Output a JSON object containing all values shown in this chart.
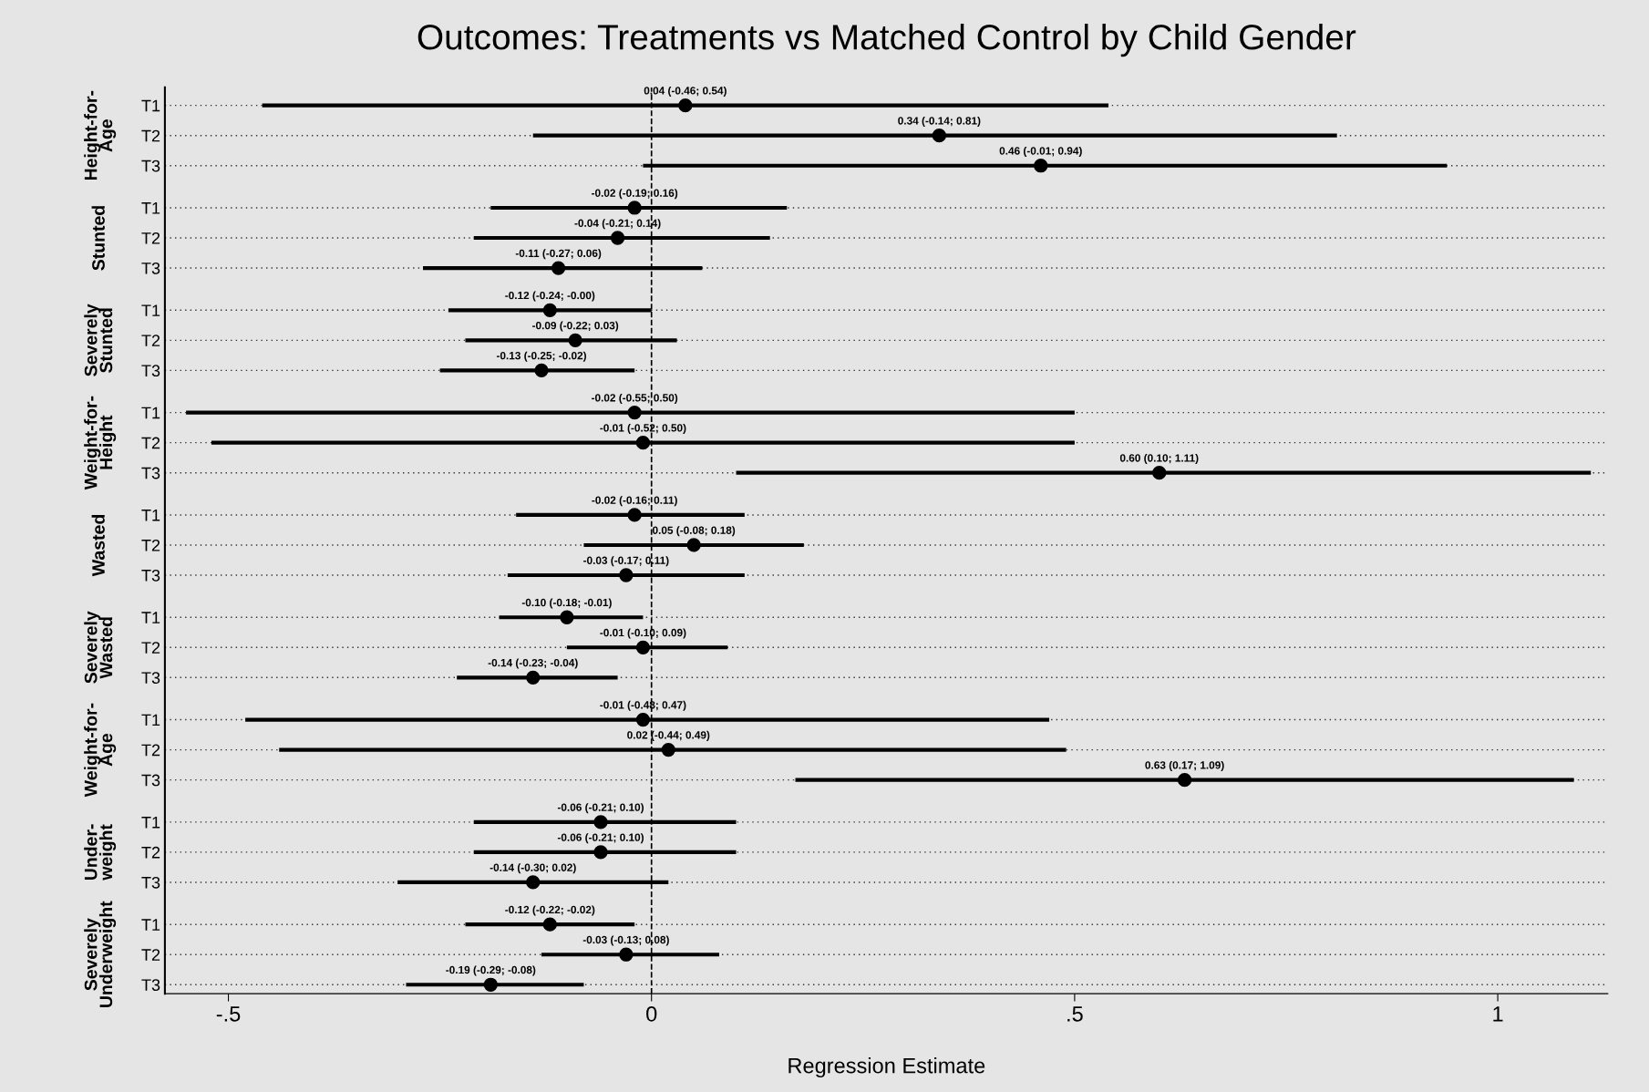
{
  "chart_data": {
    "type": "scatter",
    "orientation": "horizontal",
    "title": "Outcomes: Treatments vs Matched Control by Child Gender",
    "xlabel": "Regression Estimate",
    "categories": [
      "T1",
      "T2",
      "T3",
      "T1",
      "T2",
      "T3",
      "T1",
      "T2",
      "T3",
      "T1",
      "T2",
      "T3",
      "T1",
      "T2",
      "T3",
      "T1",
      "T2",
      "T3",
      "T1",
      "T2",
      "T3",
      "T1",
      "T2",
      "T3",
      "T1",
      "T2",
      "T3"
    ],
    "annotations": [
      "Height-for-\nAge",
      "Stunted",
      "Severely\nStunted",
      "Weight-for-\nHeight",
      "Wasted",
      "Severely\nWasted",
      "Weight-for-\nAge",
      "Under-\nweight",
      "Severely\nUnderweight"
    ],
    "values": [
      0.04,
      0.34,
      0.46,
      -0.02,
      -0.04,
      -0.11,
      -0.12,
      -0.09,
      -0.13,
      -0.02,
      -0.01,
      0.6,
      -0.02,
      0.05,
      -0.03,
      -0.1,
      -0.01,
      -0.14,
      -0.01,
      0.02,
      0.63,
      -0.06,
      -0.06,
      -0.14,
      -0.12,
      -0.03,
      -0.19
    ],
    "errors": [
      [
        -0.46,
        0.54
      ],
      [
        -0.14,
        0.81
      ],
      [
        -0.01,
        0.94
      ],
      [
        -0.19,
        0.16
      ],
      [
        -0.21,
        0.14
      ],
      [
        -0.27,
        0.06
      ],
      [
        -0.24,
        -0.0
      ],
      [
        -0.22,
        0.03
      ],
      [
        -0.25,
        -0.02
      ],
      [
        -0.55,
        0.5
      ],
      [
        -0.52,
        0.5
      ],
      [
        0.1,
        1.11
      ],
      [
        -0.16,
        0.11
      ],
      [
        -0.08,
        0.18
      ],
      [
        -0.17,
        0.11
      ],
      [
        -0.18,
        -0.01
      ],
      [
        -0.1,
        0.09
      ],
      [
        -0.23,
        -0.04
      ],
      [
        -0.48,
        0.47
      ],
      [
        -0.44,
        0.49
      ],
      [
        0.17,
        1.09
      ],
      [
        -0.21,
        0.1
      ],
      [
        -0.21,
        0.1
      ],
      [
        -0.3,
        0.02
      ],
      [
        -0.22,
        -0.02
      ],
      [
        -0.13,
        0.08
      ],
      [
        -0.29,
        -0.08
      ]
    ],
    "value_labels": [
      "0.04 (-0.46; 0.54)",
      "0.34 (-0.14; 0.81)",
      "0.46 (-0.01; 0.94)",
      "-0.02 (-0.19; 0.16)",
      "-0.04 (-0.21; 0.14)",
      "-0.11 (-0.27; 0.06)",
      "-0.12 (-0.24; -0.00)",
      "-0.09 (-0.22; 0.03)",
      "-0.13 (-0.25; -0.02)",
      "-0.02 (-0.55; 0.50)",
      "-0.01 (-0.52; 0.50)",
      "0.60 (0.10; 1.11)",
      "-0.02 (-0.16; 0.11)",
      "0.05 (-0.08; 0.18)",
      "-0.03 (-0.17; 0.11)",
      "-0.10 (-0.18; -0.01)",
      "-0.01 (-0.10; 0.09)",
      "-0.14 (-0.23; -0.04)",
      "-0.01 (-0.48; 0.47)",
      "0.02 (-0.44; 0.49)",
      "0.63 (0.17; 1.09)",
      "-0.06 (-0.21; 0.10)",
      "-0.06 (-0.21; 0.10)",
      "-0.14 (-0.30; 0.02)",
      "-0.12 (-0.22; -0.02)",
      "-0.03 (-0.13; 0.08)",
      "-0.19 (-0.29; -0.08)"
    ],
    "color": "#000000",
    "marker": "circle",
    "xlim": [
      -0.575,
      1.13
    ],
    "xticks": [
      {
        "value": -0.5,
        "label": "-.5"
      },
      0,
      {
        "value": 0.5,
        "label": ".5"
      },
      1
    ],
    "ref_lines": [
      {
        "axis": "x",
        "value": 0,
        "line_style": "dashed"
      }
    ],
    "grid": "y"
  }
}
